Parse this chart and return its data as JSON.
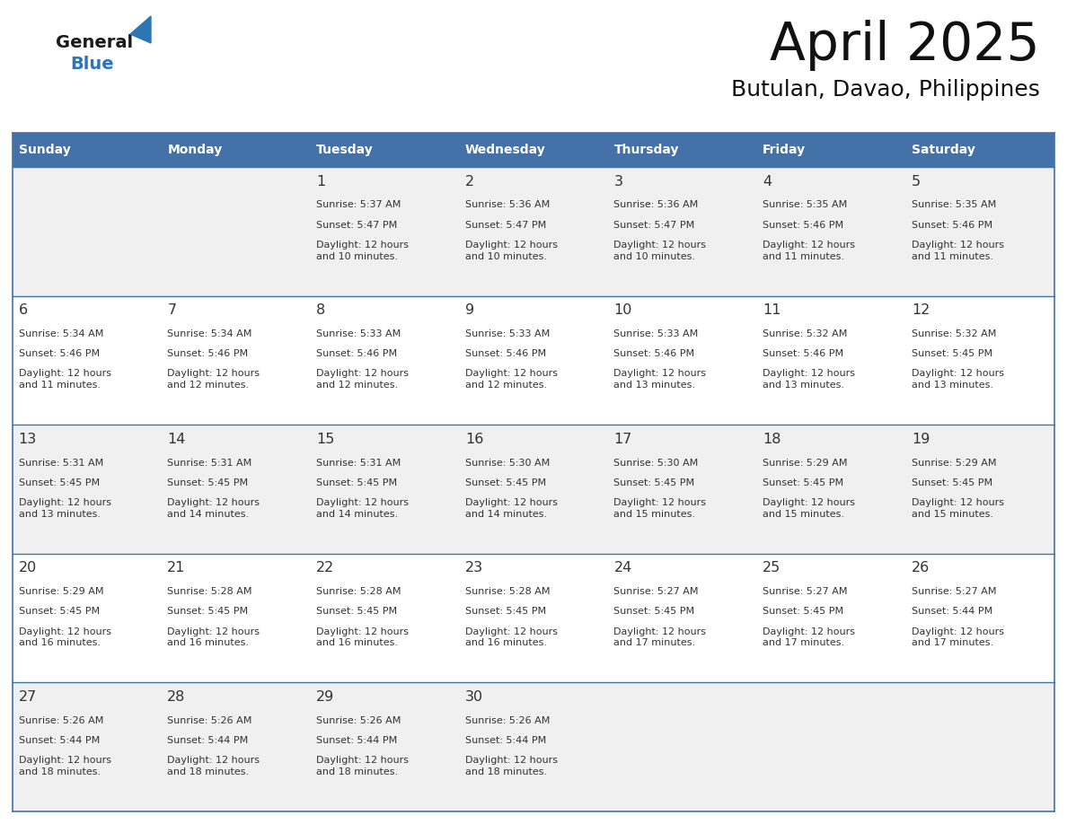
{
  "title": "April 2025",
  "subtitle": "Butulan, Davao, Philippines",
  "header_color": "#4472a8",
  "header_text_color": "#ffffff",
  "row_bg_odd": "#f0f0f0",
  "row_bg_even": "#ffffff",
  "text_color": "#333333",
  "days_of_week": [
    "Sunday",
    "Monday",
    "Tuesday",
    "Wednesday",
    "Thursday",
    "Friday",
    "Saturday"
  ],
  "weeks": [
    [
      {
        "day": "",
        "sunrise": "",
        "sunset": "",
        "daylight": ""
      },
      {
        "day": "",
        "sunrise": "",
        "sunset": "",
        "daylight": ""
      },
      {
        "day": "1",
        "sunrise": "Sunrise: 5:37 AM",
        "sunset": "Sunset: 5:47 PM",
        "daylight": "Daylight: 12 hours\nand 10 minutes."
      },
      {
        "day": "2",
        "sunrise": "Sunrise: 5:36 AM",
        "sunset": "Sunset: 5:47 PM",
        "daylight": "Daylight: 12 hours\nand 10 minutes."
      },
      {
        "day": "3",
        "sunrise": "Sunrise: 5:36 AM",
        "sunset": "Sunset: 5:47 PM",
        "daylight": "Daylight: 12 hours\nand 10 minutes."
      },
      {
        "day": "4",
        "sunrise": "Sunrise: 5:35 AM",
        "sunset": "Sunset: 5:46 PM",
        "daylight": "Daylight: 12 hours\nand 11 minutes."
      },
      {
        "day": "5",
        "sunrise": "Sunrise: 5:35 AM",
        "sunset": "Sunset: 5:46 PM",
        "daylight": "Daylight: 12 hours\nand 11 minutes."
      }
    ],
    [
      {
        "day": "6",
        "sunrise": "Sunrise: 5:34 AM",
        "sunset": "Sunset: 5:46 PM",
        "daylight": "Daylight: 12 hours\nand 11 minutes."
      },
      {
        "day": "7",
        "sunrise": "Sunrise: 5:34 AM",
        "sunset": "Sunset: 5:46 PM",
        "daylight": "Daylight: 12 hours\nand 12 minutes."
      },
      {
        "day": "8",
        "sunrise": "Sunrise: 5:33 AM",
        "sunset": "Sunset: 5:46 PM",
        "daylight": "Daylight: 12 hours\nand 12 minutes."
      },
      {
        "day": "9",
        "sunrise": "Sunrise: 5:33 AM",
        "sunset": "Sunset: 5:46 PM",
        "daylight": "Daylight: 12 hours\nand 12 minutes."
      },
      {
        "day": "10",
        "sunrise": "Sunrise: 5:33 AM",
        "sunset": "Sunset: 5:46 PM",
        "daylight": "Daylight: 12 hours\nand 13 minutes."
      },
      {
        "day": "11",
        "sunrise": "Sunrise: 5:32 AM",
        "sunset": "Sunset: 5:46 PM",
        "daylight": "Daylight: 12 hours\nand 13 minutes."
      },
      {
        "day": "12",
        "sunrise": "Sunrise: 5:32 AM",
        "sunset": "Sunset: 5:45 PM",
        "daylight": "Daylight: 12 hours\nand 13 minutes."
      }
    ],
    [
      {
        "day": "13",
        "sunrise": "Sunrise: 5:31 AM",
        "sunset": "Sunset: 5:45 PM",
        "daylight": "Daylight: 12 hours\nand 13 minutes."
      },
      {
        "day": "14",
        "sunrise": "Sunrise: 5:31 AM",
        "sunset": "Sunset: 5:45 PM",
        "daylight": "Daylight: 12 hours\nand 14 minutes."
      },
      {
        "day": "15",
        "sunrise": "Sunrise: 5:31 AM",
        "sunset": "Sunset: 5:45 PM",
        "daylight": "Daylight: 12 hours\nand 14 minutes."
      },
      {
        "day": "16",
        "sunrise": "Sunrise: 5:30 AM",
        "sunset": "Sunset: 5:45 PM",
        "daylight": "Daylight: 12 hours\nand 14 minutes."
      },
      {
        "day": "17",
        "sunrise": "Sunrise: 5:30 AM",
        "sunset": "Sunset: 5:45 PM",
        "daylight": "Daylight: 12 hours\nand 15 minutes."
      },
      {
        "day": "18",
        "sunrise": "Sunrise: 5:29 AM",
        "sunset": "Sunset: 5:45 PM",
        "daylight": "Daylight: 12 hours\nand 15 minutes."
      },
      {
        "day": "19",
        "sunrise": "Sunrise: 5:29 AM",
        "sunset": "Sunset: 5:45 PM",
        "daylight": "Daylight: 12 hours\nand 15 minutes."
      }
    ],
    [
      {
        "day": "20",
        "sunrise": "Sunrise: 5:29 AM",
        "sunset": "Sunset: 5:45 PM",
        "daylight": "Daylight: 12 hours\nand 16 minutes."
      },
      {
        "day": "21",
        "sunrise": "Sunrise: 5:28 AM",
        "sunset": "Sunset: 5:45 PM",
        "daylight": "Daylight: 12 hours\nand 16 minutes."
      },
      {
        "day": "22",
        "sunrise": "Sunrise: 5:28 AM",
        "sunset": "Sunset: 5:45 PM",
        "daylight": "Daylight: 12 hours\nand 16 minutes."
      },
      {
        "day": "23",
        "sunrise": "Sunrise: 5:28 AM",
        "sunset": "Sunset: 5:45 PM",
        "daylight": "Daylight: 12 hours\nand 16 minutes."
      },
      {
        "day": "24",
        "sunrise": "Sunrise: 5:27 AM",
        "sunset": "Sunset: 5:45 PM",
        "daylight": "Daylight: 12 hours\nand 17 minutes."
      },
      {
        "day": "25",
        "sunrise": "Sunrise: 5:27 AM",
        "sunset": "Sunset: 5:45 PM",
        "daylight": "Daylight: 12 hours\nand 17 minutes."
      },
      {
        "day": "26",
        "sunrise": "Sunrise: 5:27 AM",
        "sunset": "Sunset: 5:44 PM",
        "daylight": "Daylight: 12 hours\nand 17 minutes."
      }
    ],
    [
      {
        "day": "27",
        "sunrise": "Sunrise: 5:26 AM",
        "sunset": "Sunset: 5:44 PM",
        "daylight": "Daylight: 12 hours\nand 18 minutes."
      },
      {
        "day": "28",
        "sunrise": "Sunrise: 5:26 AM",
        "sunset": "Sunset: 5:44 PM",
        "daylight": "Daylight: 12 hours\nand 18 minutes."
      },
      {
        "day": "29",
        "sunrise": "Sunrise: 5:26 AM",
        "sunset": "Sunset: 5:44 PM",
        "daylight": "Daylight: 12 hours\nand 18 minutes."
      },
      {
        "day": "30",
        "sunrise": "Sunrise: 5:26 AM",
        "sunset": "Sunset: 5:44 PM",
        "daylight": "Daylight: 12 hours\nand 18 minutes."
      },
      {
        "day": "",
        "sunrise": "",
        "sunset": "",
        "daylight": ""
      },
      {
        "day": "",
        "sunrise": "",
        "sunset": "",
        "daylight": ""
      },
      {
        "day": "",
        "sunrise": "",
        "sunset": "",
        "daylight": ""
      }
    ]
  ],
  "logo_general_color": "#1a1a1a",
  "logo_blue_color": "#2e75b6",
  "border_color": "#4472a8",
  "figsize": [
    11.88,
    9.18
  ],
  "dpi": 100
}
